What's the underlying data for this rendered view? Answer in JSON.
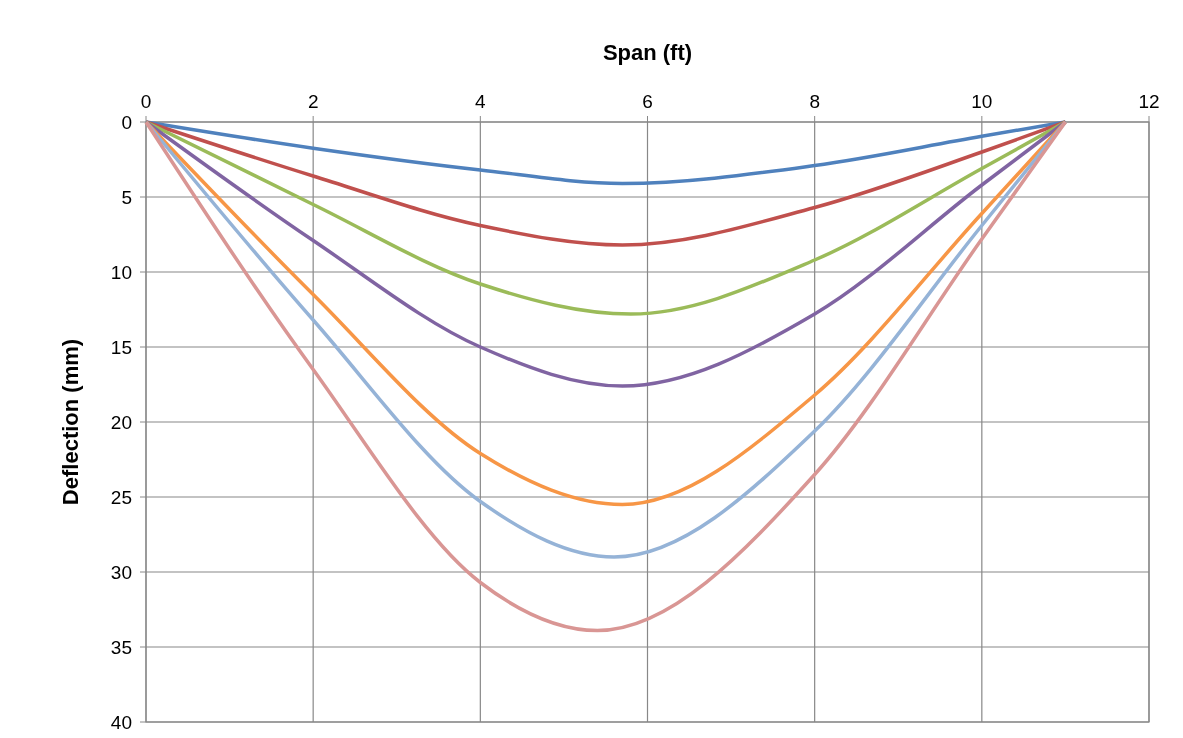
{
  "chart_data": {
    "type": "line",
    "xlabel": "Span (ft)",
    "ylabel": "Deflection (mm)",
    "xlim": [
      0,
      12
    ],
    "xticks": [
      0,
      2,
      4,
      6,
      8,
      10,
      12
    ],
    "ylim": [
      40,
      0
    ],
    "yticks": [
      0,
      5,
      10,
      15,
      20,
      25,
      30,
      35,
      40
    ],
    "grid": true,
    "series": [
      {
        "color": "#4f81bd",
        "x": [
          0,
          2,
          4,
          5.7,
          8,
          10,
          11
        ],
        "values": [
          0,
          1.75,
          3.2,
          4.1,
          2.9,
          0.95,
          0
        ]
      },
      {
        "color": "#c0504d",
        "x": [
          0,
          2,
          4,
          5.7,
          8,
          10,
          11
        ],
        "values": [
          0,
          3.6,
          6.9,
          8.2,
          5.7,
          2.0,
          0
        ]
      },
      {
        "color": "#9bbb59",
        "x": [
          0,
          2,
          4,
          5.8,
          8,
          10,
          11
        ],
        "values": [
          0,
          5.5,
          10.8,
          12.8,
          9.2,
          3.1,
          0
        ]
      },
      {
        "color": "#8064a2",
        "x": [
          0,
          2,
          4,
          5.7,
          8,
          10,
          11
        ],
        "values": [
          0,
          7.9,
          15.0,
          17.6,
          12.8,
          4.2,
          0
        ]
      },
      {
        "color": "#f79646",
        "x": [
          0,
          2,
          4,
          5.7,
          8,
          10,
          11
        ],
        "values": [
          0,
          11.5,
          22.1,
          25.5,
          18.2,
          6.1,
          0
        ]
      },
      {
        "color": "#95b3d7",
        "x": [
          0,
          2,
          4,
          5.6,
          8,
          10,
          11
        ],
        "values": [
          0,
          13.2,
          25.3,
          29.0,
          20.6,
          6.9,
          0
        ]
      },
      {
        "color": "#d99694",
        "x": [
          0,
          2,
          4,
          5.4,
          8,
          10,
          11
        ],
        "values": [
          0,
          16.5,
          30.7,
          33.9,
          23.5,
          7.8,
          0
        ]
      }
    ]
  }
}
